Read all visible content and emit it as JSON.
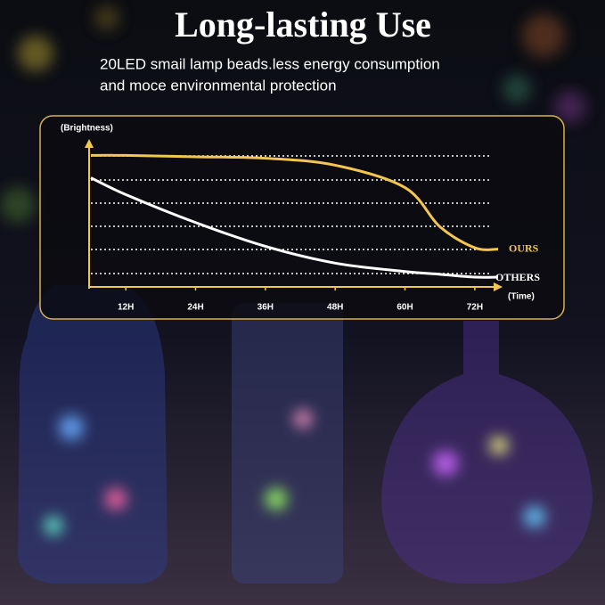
{
  "chart_data": {
    "type": "line",
    "title": "Long-lasting Use",
    "subtitle": [
      "20LED smail lamp beads.less energy consumption",
      "and moce environmental protection"
    ],
    "y_label": "(Brightness)",
    "x_label": "(Time)",
    "x": [
      6,
      12,
      24,
      36,
      48,
      60,
      66,
      72,
      76
    ],
    "xlim": [
      6,
      76
    ],
    "xticks": [
      {
        "value": 12,
        "label": "12H"
      },
      {
        "value": 24,
        "label": "24H"
      },
      {
        "value": 36,
        "label": "36H"
      },
      {
        "value": 48,
        "label": "48H"
      },
      {
        "value": 60,
        "label": "60H"
      },
      {
        "value": 72,
        "label": "72H"
      }
    ],
    "ylim": [
      0,
      100
    ],
    "series": [
      {
        "name": "OURS",
        "color": "#f3c64f",
        "values": [
          94,
          94,
          93,
          92,
          87,
          71,
          43,
          28,
          27
        ]
      },
      {
        "name": "OTHERS",
        "color": "#ffffff",
        "values": [
          78,
          66,
          46,
          29,
          17,
          11,
          9,
          7,
          7
        ]
      }
    ]
  }
}
